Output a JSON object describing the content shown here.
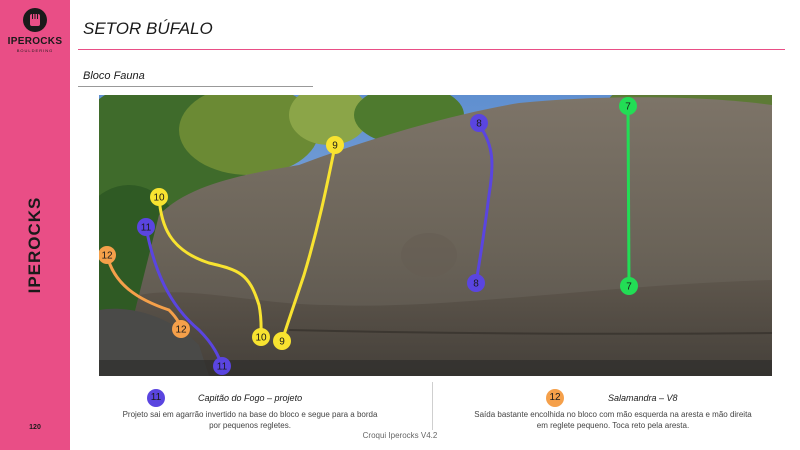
{
  "brand": {
    "logo_name": "IPEROCKS",
    "logo_sub": "BOULDERING",
    "vertical": "IPEROCKS",
    "page": "120"
  },
  "header": {
    "title": "SETOR BÚFALO",
    "subtitle": "Bloco Fauna"
  },
  "colors": {
    "pink": "#e94e86",
    "route_8": "#5a45e0",
    "route_7": "#22dd55",
    "route_9": "#f8e330",
    "route_10": "#f8e330",
    "route_11": "#5a45e0",
    "route_12": "#f5a04a"
  },
  "photo": {
    "markers": [
      {
        "num": "7",
        "color": "#22dd55"
      },
      {
        "num": "7",
        "color": "#22dd55"
      },
      {
        "num": "8",
        "color": "#5a45e0"
      },
      {
        "num": "8",
        "color": "#5a45e0"
      },
      {
        "num": "9",
        "color": "#f8e330"
      },
      {
        "num": "9",
        "color": "#f8e330"
      },
      {
        "num": "10",
        "color": "#f8e330"
      },
      {
        "num": "10",
        "color": "#f8e330"
      },
      {
        "num": "11",
        "color": "#5a45e0"
      },
      {
        "num": "11",
        "color": "#5a45e0"
      },
      {
        "num": "12",
        "color": "#f5a04a"
      },
      {
        "num": "12",
        "color": "#f5a04a"
      }
    ]
  },
  "routes": [
    {
      "num": "11",
      "name": "Capitão do Fogo – projeto",
      "desc_line1": "Projeto sai em agarrão invertido na base do bloco e segue para a borda",
      "desc_line2": "por pequenos regletes."
    },
    {
      "num": "12",
      "name": "Salamandra – V8",
      "desc_line1": "Saída bastante encolhida no bloco com mão esquerda na aresta e mão direita",
      "desc_line2": "em reglete pequeno. Toca reto pela aresta."
    }
  ],
  "footer": "Croqui Iperocks V4.2"
}
